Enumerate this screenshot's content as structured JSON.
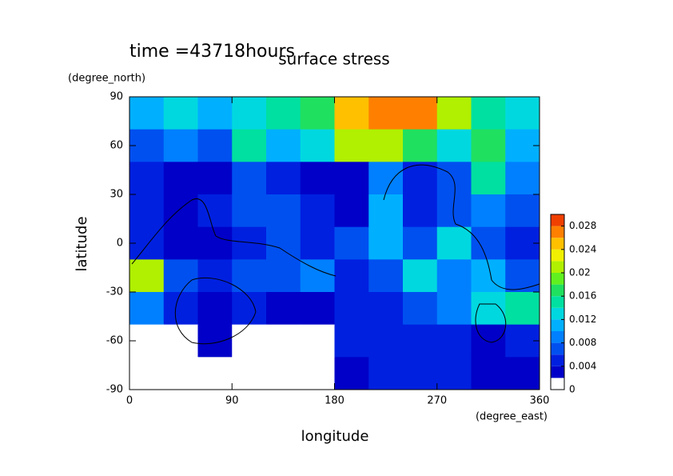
{
  "chart_data": {
    "type": "heatmap",
    "title": "surface stress",
    "subtitle": "time =43718hours",
    "x_label": "longitude",
    "y_label": "latitude",
    "x_unit": "(degree_east)",
    "y_unit": "(degree_north)",
    "xlim": [
      0,
      360
    ],
    "ylim": [
      -90,
      90
    ],
    "xticks": [
      0,
      90,
      180,
      270,
      360
    ],
    "yticks": [
      -90,
      -60,
      -30,
      0,
      30,
      60,
      90
    ],
    "x": [
      15,
      45,
      75,
      105,
      135,
      165,
      195,
      225,
      255,
      285,
      315,
      345
    ],
    "y": [
      80,
      60,
      40,
      20,
      0,
      -20,
      -40,
      -60,
      -80
    ],
    "values": [
      [
        0.01,
        0.012,
        0.01,
        0.012,
        0.014,
        0.016,
        0.024,
        0.026,
        0.026,
        0.02,
        0.014,
        0.012
      ],
      [
        0.006,
        0.008,
        0.006,
        0.014,
        0.01,
        0.012,
        0.02,
        0.02,
        0.016,
        0.012,
        0.016,
        0.01
      ],
      [
        0.004,
        0.002,
        0.002,
        0.006,
        0.004,
        0.002,
        0.002,
        0.008,
        0.004,
        0.006,
        0.014,
        0.008
      ],
      [
        0.004,
        0.002,
        0.004,
        0.006,
        0.006,
        0.004,
        0.002,
        0.01,
        0.004,
        0.006,
        0.008,
        0.006
      ],
      [
        0.004,
        0.002,
        0.002,
        0.004,
        0.006,
        0.004,
        0.006,
        0.01,
        0.006,
        0.012,
        0.006,
        0.004
      ],
      [
        0.02,
        0.006,
        0.004,
        0.006,
        0.006,
        0.008,
        0.004,
        0.006,
        0.012,
        0.008,
        0.01,
        0.006
      ],
      [
        0.008,
        0.004,
        0.002,
        0.004,
        0.002,
        0.002,
        0.004,
        0.004,
        0.006,
        0.008,
        0.012,
        0.014
      ],
      [
        0.0,
        0.0,
        0.002,
        0.0,
        0.0,
        0.0,
        0.004,
        0.004,
        0.004,
        0.004,
        0.002,
        0.004
      ],
      [
        0.0,
        0.0,
        0.0,
        0.0,
        0.0,
        0.0,
        0.002,
        0.004,
        0.004,
        0.004,
        0.002,
        0.002
      ]
    ],
    "levels": [
      0,
      0.002,
      0.004,
      0.006,
      0.008,
      0.01,
      0.012,
      0.014,
      0.016,
      0.018,
      0.02,
      0.022,
      0.024,
      0.026,
      0.028,
      0.03
    ],
    "colors": [
      "#ffffff",
      "#0000c8",
      "#0020e0",
      "#0050f0",
      "#0080ff",
      "#00b0ff",
      "#00d8e0",
      "#00e0a0",
      "#20e060",
      "#60f020",
      "#b0f000",
      "#f0f000",
      "#ffc000",
      "#ff8000",
      "#f04000"
    ],
    "colorbar_ticks": [
      0,
      0.004,
      0.008,
      0.012,
      0.016,
      0.02,
      0.024,
      0.028
    ]
  }
}
